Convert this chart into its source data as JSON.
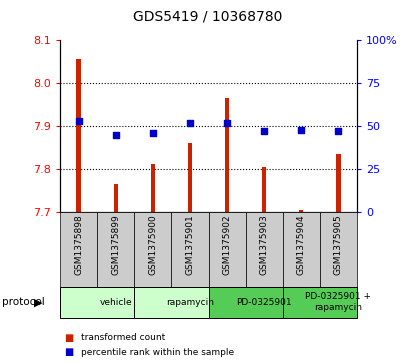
{
  "title": "GDS5419 / 10368780",
  "samples": [
    "GSM1375898",
    "GSM1375899",
    "GSM1375900",
    "GSM1375901",
    "GSM1375902",
    "GSM1375903",
    "GSM1375904",
    "GSM1375905"
  ],
  "red_values": [
    8.055,
    7.765,
    7.812,
    7.862,
    7.965,
    7.805,
    7.705,
    7.835
  ],
  "blue_values": [
    53,
    45,
    46,
    52,
    52,
    47,
    48,
    47
  ],
  "ylim_left": [
    7.7,
    8.1
  ],
  "ylim_right": [
    0,
    100
  ],
  "yticks_left": [
    7.7,
    7.8,
    7.9,
    8.0,
    8.1
  ],
  "yticks_right": [
    0,
    25,
    50,
    75,
    100
  ],
  "protocols": [
    {
      "label": "vehicle",
      "spans": [
        0,
        2
      ],
      "color": "#ccffcc"
    },
    {
      "label": "rapamycin",
      "spans": [
        2,
        4
      ],
      "color": "#ccffcc"
    },
    {
      "label": "PD-0325901",
      "spans": [
        4,
        6
      ],
      "color": "#55cc55"
    },
    {
      "label": "PD-0325901 +\nrapamycin",
      "spans": [
        6,
        8
      ],
      "color": "#55cc55"
    }
  ],
  "bar_color": "#cc2200",
  "dot_color": "#0000cc",
  "sample_bg": "#cccccc",
  "legend_red_label": "transformed count",
  "legend_blue_label": "percentile rank within the sample",
  "protocol_label": "protocol",
  "bar_width": 0.12,
  "dot_size": 14
}
